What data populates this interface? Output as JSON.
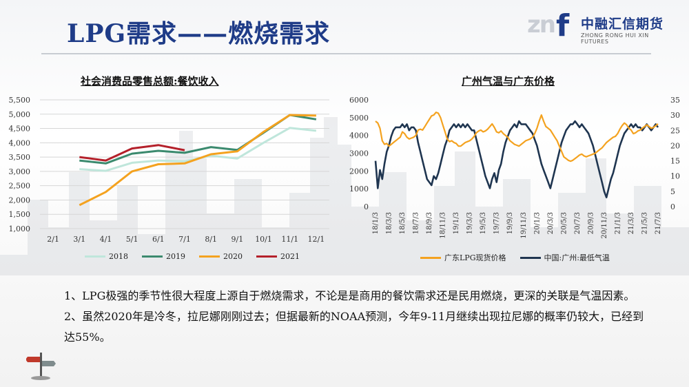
{
  "page": {
    "title": "LPG需求——燃烧需求"
  },
  "logo": {
    "mark_text": "zn",
    "f_text": "f",
    "name_cn": "中融汇信期货",
    "name_en": "ZHONG RONG HUI XIN FUTURES"
  },
  "colors": {
    "title_blue": "#1f3c88",
    "s2018": "#bfe6db",
    "s2019": "#3b8a6e",
    "s2020": "#f4a21f",
    "s2021": "#b4202a",
    "lpg_price": "#f4a21f",
    "min_temp": "#1f3550"
  },
  "chart_data": [
    {
      "type": "line",
      "title": "社会消费品零售总额:餐饮收入",
      "categories": [
        "2/1",
        "3/1",
        "4/1",
        "5/1",
        "6/1",
        "7/1",
        "8/1",
        "9/1",
        "10/1",
        "11/1",
        "12/1"
      ],
      "ylim": [
        1000,
        5500
      ],
      "yticks": [
        "1,000",
        "1,500",
        "2,000",
        "2,500",
        "3,000",
        "3,500",
        "4,000",
        "4,500",
        "5,000",
        "5,500"
      ],
      "grid": true,
      "legend": "bottom",
      "series": [
        {
          "name": "2018",
          "values": [
            null,
            3080,
            3020,
            3300,
            3380,
            3350,
            3550,
            3450,
            4000,
            4520,
            4420
          ]
        },
        {
          "name": "2019",
          "values": [
            null,
            3380,
            3280,
            3620,
            3720,
            3650,
            3850,
            3750,
            4350,
            4970,
            4820
          ]
        },
        {
          "name": "2020",
          "values": [
            null,
            1820,
            2280,
            3000,
            3250,
            3280,
            3600,
            3700,
            4380,
            4970,
            4950
          ]
        },
        {
          "name": "2021",
          "values": [
            null,
            3500,
            3380,
            3800,
            3920,
            3740,
            null,
            null,
            null,
            null,
            null
          ]
        }
      ]
    },
    {
      "type": "line",
      "title": "广州气温与广东价格",
      "x_labels": [
        "18/1/3",
        "18/3/3",
        "18/5/3",
        "18/7/3",
        "18/9/3",
        "18/11/3",
        "19/1/3",
        "19/3/3",
        "19/5/3",
        "19/7/3",
        "19/9/3",
        "19/11/3",
        "20/1/3",
        "20/3/3",
        "20/5/3",
        "20/7/3",
        "20/9/3",
        "20/11/3",
        "21/1/3",
        "21/3/3",
        "21/5/3",
        "21/7/3"
      ],
      "y_left": {
        "range": [
          0,
          6000
        ],
        "ticks": [
          "0",
          "1000",
          "2000",
          "3000",
          "4000",
          "5000",
          "6000"
        ]
      },
      "y_right": {
        "range": [
          0,
          35
        ],
        "ticks": [
          "0",
          "5",
          "10",
          "15",
          "20",
          "25",
          "30",
          "35"
        ]
      },
      "legend": "bottom",
      "series": [
        {
          "name": "广东LPG现货价格",
          "axis": "left",
          "values": [
            4800,
            4700,
            4400,
            3700,
            3500,
            3550,
            3400,
            3500,
            3600,
            3700,
            3800,
            3900,
            4200,
            4100,
            3900,
            3800,
            3850,
            3900,
            4000,
            4300,
            4350,
            4300,
            4500,
            4700,
            4900,
            5100,
            5150,
            5300,
            5250,
            5000,
            4600,
            4200,
            3800,
            3650,
            3700,
            3600,
            3550,
            3400,
            3400,
            3500,
            3600,
            3650,
            3700,
            3800,
            3950,
            4150,
            4250,
            4300,
            4200,
            4250,
            4350,
            4500,
            4650,
            4450,
            4200,
            4150,
            4250,
            4100,
            4000,
            3900,
            3700,
            3600,
            3500,
            3450,
            3400,
            3500,
            3600,
            3700,
            3750,
            3800,
            3900,
            4100,
            4400,
            4800,
            5150,
            4800,
            4500,
            4400,
            4300,
            4100,
            3900,
            3700,
            3400,
            3100,
            2800,
            2700,
            2600,
            2550,
            2600,
            2700,
            2800,
            2900,
            2950,
            2850,
            2800,
            2850,
            2900,
            2950,
            3000,
            3100,
            3200,
            3300,
            3450,
            3600,
            3700,
            3800,
            3900,
            3950,
            4100,
            4350,
            4550,
            4700,
            4600,
            4400,
            4300,
            4100,
            4150,
            4250,
            4300,
            4400,
            4500,
            4600,
            4500,
            4400,
            4450,
            4550,
            4650
          ]
        },
        {
          "name": "中国:广州:最低气温",
          "axis": "right",
          "values": [
            15,
            6,
            12,
            9,
            14,
            18,
            20,
            23,
            25,
            26,
            26,
            26,
            27,
            26,
            27,
            25,
            26,
            26,
            25,
            21,
            18,
            15,
            12,
            9,
            8,
            7,
            10,
            9,
            11,
            14,
            17,
            20,
            22,
            25,
            26,
            27,
            26,
            27,
            26,
            27,
            26,
            27,
            26,
            25,
            25,
            22,
            19,
            16,
            13,
            10,
            8,
            6,
            9,
            11,
            8,
            12,
            14,
            18,
            21,
            23,
            25,
            26,
            27,
            26,
            28,
            27,
            27,
            27,
            26,
            25,
            24,
            22,
            20,
            17,
            14,
            12,
            10,
            8,
            6,
            9,
            12,
            15,
            18,
            21,
            23,
            25,
            26,
            27,
            27,
            28,
            27,
            26,
            27,
            26,
            25,
            24,
            22,
            20,
            17,
            14,
            11,
            8,
            5,
            3,
            6,
            9,
            11,
            14,
            17,
            20,
            22,
            24,
            25,
            26,
            27,
            26,
            27,
            26,
            26,
            25,
            26,
            27,
            26,
            25,
            26,
            27,
            26
          ]
        }
      ]
    }
  ],
  "notes": {
    "p1": "1、LPG极强的季节性很大程度上源自于燃烧需求，不论是是商用的餐饮需求还是民用燃烧，更深的关联是气温因素。",
    "p2": "2、虽然2020年是冷冬，拉尼娜刚刚过去；但据最新的NOAA预测，今年9-11月继续出现拉尼娜的概率仍较大，已经到达55%。"
  }
}
